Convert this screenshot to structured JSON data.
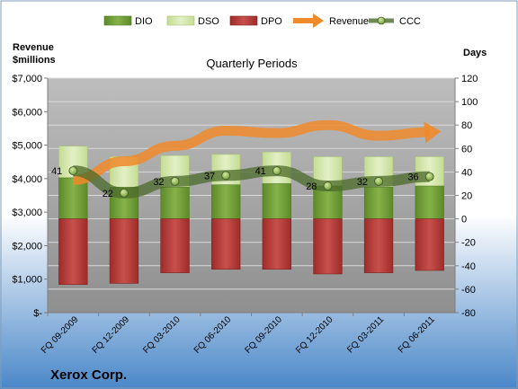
{
  "chart_data": {
    "type": "bar",
    "subtitle": "Quarterly Periods",
    "company": "Xerox Corp.",
    "left_axis_label": [
      "Revenue",
      "$millions"
    ],
    "right_axis_label": "Days",
    "left_ylim": [
      0,
      7000
    ],
    "left_ticks": [
      "$-",
      "$1,000",
      "$2,000",
      "$3,000",
      "$4,000",
      "$5,000",
      "$6,000",
      "$7,000"
    ],
    "right_ylim": [
      -80,
      120
    ],
    "right_ticks": [
      "-80",
      "-60",
      "-40",
      "-20",
      "0",
      "20",
      "40",
      "60",
      "80",
      "100",
      "120"
    ],
    "categories": [
      "FQ 09-2009",
      "FQ 12-2009",
      "FQ 03-2010",
      "FQ 06-2010",
      "FQ 09-2010",
      "FQ 12-2010",
      "FQ 03-2011",
      "FQ 06-2011"
    ],
    "legend": [
      "DIO",
      "DSO",
      "DPO",
      "Revenue",
      "CCC"
    ],
    "legend_position": "top",
    "grid": true,
    "series": [
      {
        "name": "DIO",
        "kind": "bar-up",
        "values": [
          35,
          27,
          27,
          29,
          30,
          28,
          27,
          28
        ]
      },
      {
        "name": "DSO",
        "kind": "bar-up",
        "values": [
          62,
          53,
          54,
          55,
          57,
          53,
          53,
          53
        ]
      },
      {
        "name": "DPO",
        "kind": "bar-down",
        "values": [
          56,
          55,
          46,
          43,
          43,
          47,
          46,
          44
        ]
      },
      {
        "name": "Revenue",
        "kind": "arrow-line",
        "values": [
          3960,
          4520,
          4980,
          5430,
          5360,
          5600,
          5280,
          5390
        ]
      },
      {
        "name": "CCC",
        "kind": "line",
        "values": [
          41,
          22,
          32,
          37,
          41,
          28,
          32,
          36
        ],
        "labels": [
          "41",
          "22",
          "32",
          "37",
          "41",
          "28",
          "32",
          "36"
        ]
      }
    ],
    "colors": {
      "dio": "#6f9a35",
      "dso": "#cfe3a3",
      "dpo": "#b23a38",
      "revenue": "#f08a2a",
      "ccc": "#4b6a2a",
      "plot_bg": "#a6a6a6",
      "page_bg_top": "#ffffff",
      "page_bg_bottom": "#4a87c8"
    }
  }
}
